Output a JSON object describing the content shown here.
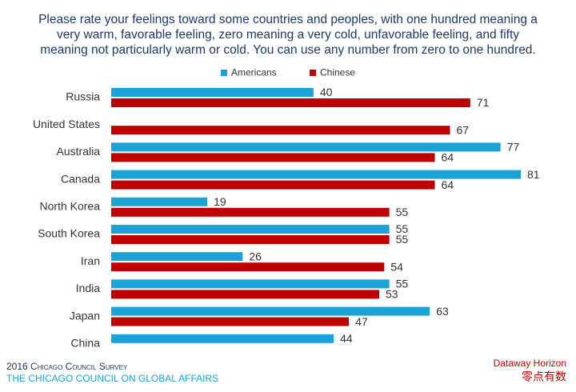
{
  "chart_data": {
    "type": "bar",
    "orientation": "horizontal",
    "title": [
      "Please rate your feelings toward some countries and peoples, with one hundred meaning a",
      "very warm, favorable feeling, zero meaning a very cold, unfavorable feeling, and fifty",
      "meaning not particularly warm or cold.  You can use any number from zero to one hundred."
    ],
    "categories": [
      "Russia",
      "United States",
      "Australia",
      "Canada",
      "North Korea",
      "South Korea",
      "Iran",
      "India",
      "Japan",
      "China"
    ],
    "series": [
      {
        "name": "Americans",
        "color": "#1aa3d6",
        "values": [
          40,
          null,
          77,
          81,
          19,
          55,
          26,
          55,
          63,
          44
        ]
      },
      {
        "name": "Chinese",
        "color": "#c00000",
        "values": [
          71,
          67,
          64,
          64,
          55,
          55,
          54,
          53,
          47,
          null
        ]
      }
    ],
    "legend": "top",
    "source": [
      "2016 Chicago Council Survey",
      "THE CHICAGO COUNCIL ON GLOBAL AFFAIRS"
    ],
    "brand": [
      "Dataway Horizon",
      "零点有数"
    ]
  }
}
